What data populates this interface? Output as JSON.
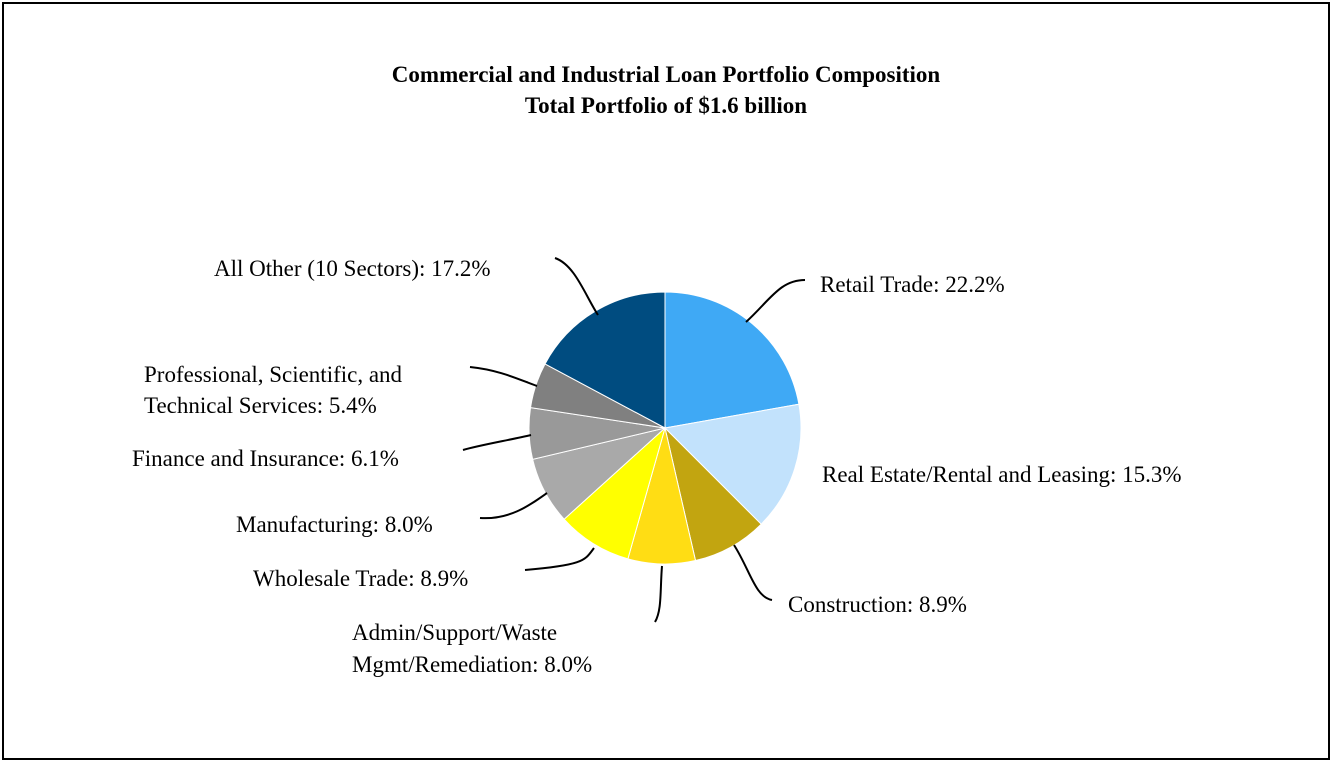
{
  "chart_data": {
    "type": "pie",
    "title": "Commercial and Industrial Loan Portfolio Composition",
    "subtitle": "Total Portfolio of $1.6 billion",
    "slices": [
      {
        "name": "Retail Trade",
        "value": 22.2,
        "color": "#3fa9f5",
        "label_lines": [
          "Retail Trade: 22.2%"
        ]
      },
      {
        "name": "Real Estate/Rental and Leasing",
        "value": 15.3,
        "color": "#c2e2fc",
        "label_lines": [
          "Real Estate/Rental and Leasing: 15.3%"
        ]
      },
      {
        "name": "Construction",
        "value": 8.9,
        "color": "#c2a510",
        "label_lines": [
          "Construction: 8.9%"
        ]
      },
      {
        "name": "Admin/Support/Waste Mgmt/Remediation",
        "value": 8.0,
        "color": "#ffdd14",
        "label_lines": [
          "Admin/Support/Waste",
          "Mgmt/Remediation: 8.0%"
        ]
      },
      {
        "name": "Wholesale Trade",
        "value": 8.9,
        "color": "#ffff00",
        "label_lines": [
          "Wholesale Trade: 8.9%"
        ]
      },
      {
        "name": "Manufacturing",
        "value": 8.0,
        "color": "#a9a9a9",
        "label_lines": [
          "Manufacturing: 8.0%"
        ]
      },
      {
        "name": "Finance and Insurance",
        "value": 6.1,
        "color": "#999999",
        "label_lines": [
          "Finance and Insurance: 6.1%"
        ]
      },
      {
        "name": "Professional, Scientific, and Technical Services",
        "value": 5.4,
        "color": "#808080",
        "label_lines": [
          "Professional, Scientific, and",
          "Technical Services: 5.4%"
        ]
      },
      {
        "name": "All Other (10 Sectors)",
        "value": 17.2,
        "color": "#004c80",
        "label_lines": [
          "All Other (10 Sectors): 17.2%"
        ]
      }
    ]
  }
}
